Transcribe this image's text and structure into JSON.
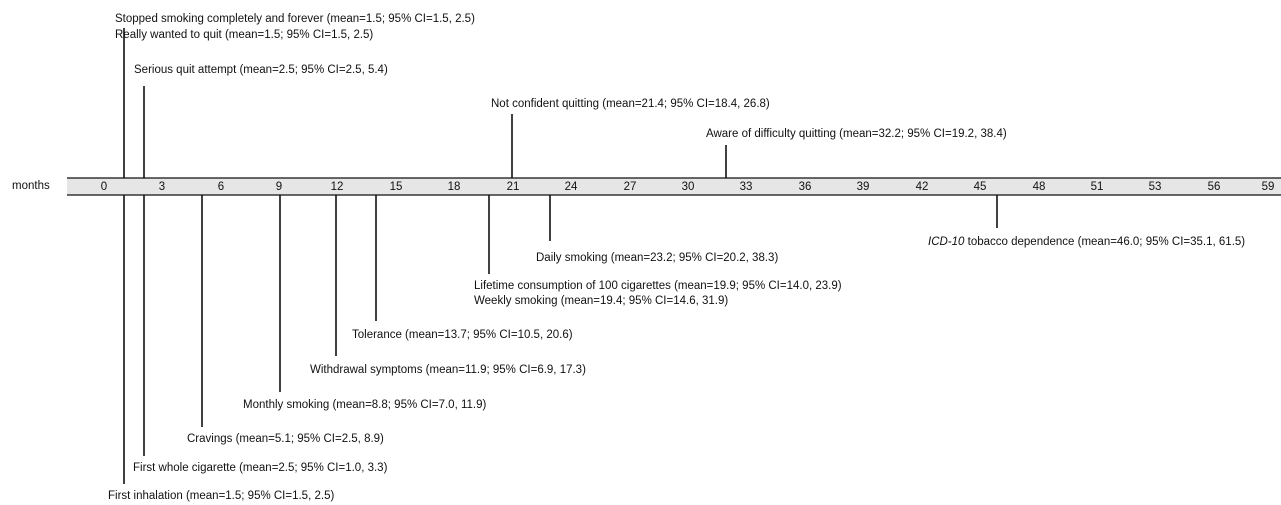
{
  "axis": {
    "name": "months",
    "ticks": [
      "0",
      "3",
      "6",
      "9",
      "12",
      "15",
      "18",
      "21",
      "24",
      "27",
      "30",
      "33",
      "36",
      "39",
      "42",
      "45",
      "48",
      "51",
      "53",
      "56",
      "59"
    ]
  },
  "events_above": [
    {
      "id": "stopped",
      "text": "Stopped smoking completely and forever (mean=1.5; 95% CI=1.5, 2.5)",
      "mean": 1.5
    },
    {
      "id": "wanted",
      "text": "Really wanted to quit (mean=1.5; 95% CI=1.5, 2.5)",
      "mean": 1.5
    },
    {
      "id": "serious",
      "text": "Serious quit attempt (mean=2.5; 95% CI=2.5, 5.4)",
      "mean": 2.5
    },
    {
      "id": "notconf",
      "text": "Not confident quitting (mean=21.4; 95% CI=18.4, 26.8)",
      "mean": 21.4
    },
    {
      "id": "aware",
      "text": "Aware of difficulty quitting (mean=32.2; 95% CI=19.2, 38.4)",
      "mean": 32.2
    }
  ],
  "events_below": [
    {
      "id": "icd",
      "italic_prefix": "ICD-10",
      "text": " tobacco dependence (mean=46.0; 95% CI=35.1, 61.5)",
      "mean": 46.0
    },
    {
      "id": "daily",
      "text": "Daily smoking (mean=23.2; 95% CI=20.2, 38.3)",
      "mean": 23.2
    },
    {
      "id": "lifetime",
      "text": "Lifetime consumption of 100 cigarettes (mean=19.9; 95% CI=14.0, 23.9)",
      "mean": 19.9
    },
    {
      "id": "weekly",
      "text": "Weekly smoking (mean=19.4; 95% CI=14.6, 31.9)",
      "mean": 19.4
    },
    {
      "id": "tolerance",
      "text": "Tolerance (mean=13.7; 95% CI=10.5, 20.6)",
      "mean": 13.7
    },
    {
      "id": "withdrawal",
      "text": "Withdrawal symptoms (mean=11.9; 95% CI=6.9, 17.3)",
      "mean": 11.9
    },
    {
      "id": "monthly",
      "text": "Monthly smoking (mean=8.8; 95% CI=7.0, 11.9)",
      "mean": 8.8
    },
    {
      "id": "cravings",
      "text": "Cravings (mean=5.1; 95% CI=2.5, 8.9)",
      "mean": 5.1
    },
    {
      "id": "firstwhole",
      "text": "First whole cigarette (mean=2.5; 95% CI=1.0, 3.3)",
      "mean": 2.5
    },
    {
      "id": "firstinh",
      "text": "First inhalation (mean=1.5; 95% CI=1.5, 2.5)",
      "mean": 1.5
    }
  ],
  "colors": {
    "band": "#e6e6e6",
    "line": "#111111"
  }
}
